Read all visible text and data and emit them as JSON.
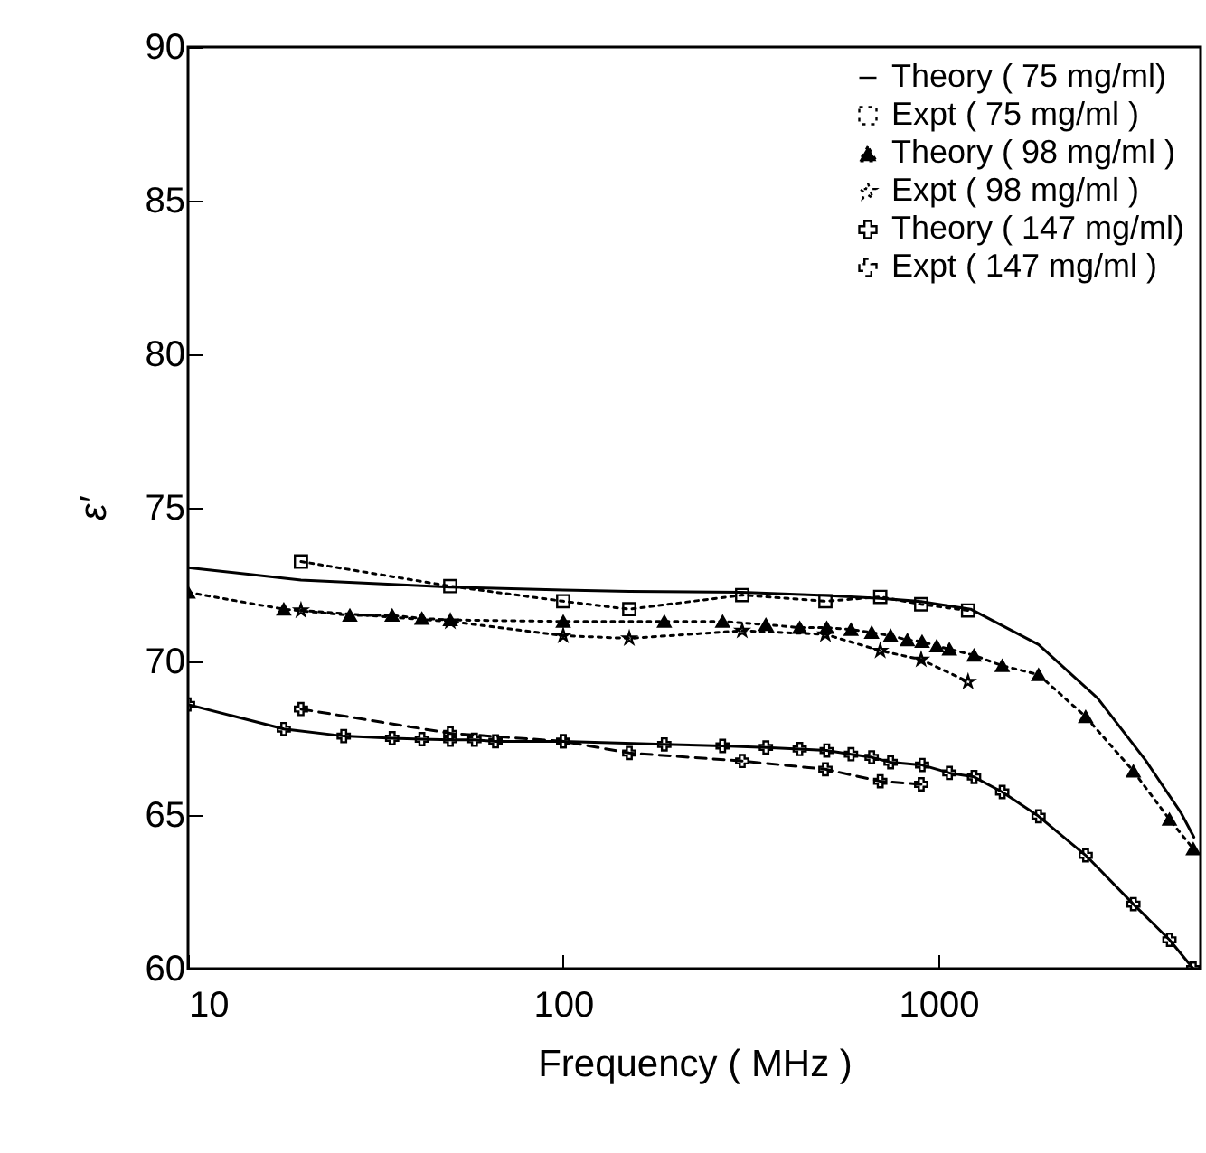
{
  "chart_data": {
    "type": "line",
    "xlabel": "Frequency ( MHz )",
    "ylabel": "ε′",
    "log": "x",
    "xlim": [
      10,
      5000
    ],
    "xticks": [
      10,
      100,
      1000
    ],
    "ylim": [
      60,
      90
    ],
    "yticks": [
      60,
      65,
      70,
      75,
      80,
      85,
      90
    ],
    "grid": false,
    "legend": "top right",
    "series": [
      {
        "name": "Theory ( 75 mg/ml)",
        "color": "#000000",
        "line_style": "solid",
        "marker": "none",
        "x": [
          10,
          20,
          50,
          100,
          150,
          300,
          500,
          700,
          900,
          1220,
          1850,
          2660,
          3560,
          4440,
          4800
        ],
        "values": [
          73.05,
          72.65,
          72.42,
          72.32,
          72.28,
          72.25,
          72.15,
          72.05,
          71.95,
          71.7,
          70.55,
          68.8,
          66.8,
          65.06,
          64.28
        ]
      },
      {
        "name": "Expt ( 75 mg/ml )",
        "color": "#000000",
        "line_style": "dotted",
        "marker": "square",
        "x": [
          20,
          50,
          100,
          150,
          300,
          500,
          700,
          900,
          1200
        ],
        "values": [
          73.25,
          72.45,
          71.96,
          71.7,
          72.16,
          71.96,
          72.1,
          71.86,
          71.66
        ]
      },
      {
        "name": "Theory ( 98 mg/ml )",
        "color": "#000000",
        "line_style": "dotted",
        "marker": "triangle",
        "x": [
          10,
          18,
          27,
          35,
          42,
          50,
          100,
          186,
          266,
          347,
          427,
          504,
          585,
          664,
          746,
          827,
          905,
          990,
          1070,
          1245,
          1480,
          1850,
          2470,
          3310,
          4130,
          4780
        ],
        "values": [
          72.25,
          71.7,
          71.5,
          71.5,
          71.4,
          71.35,
          71.3,
          71.3,
          71.3,
          71.2,
          71.1,
          71.1,
          71.04,
          70.94,
          70.84,
          70.7,
          70.65,
          70.5,
          70.4,
          70.2,
          69.86,
          69.57,
          68.2,
          66.43,
          64.86,
          63.9
        ]
      },
      {
        "name": "Expt ( 98 mg/ml )",
        "color": "#000000",
        "line_style": "dotted",
        "marker": "star",
        "x": [
          20,
          50,
          100,
          150,
          300,
          500,
          700,
          900,
          1200
        ],
        "values": [
          71.66,
          71.3,
          70.84,
          70.75,
          71.0,
          70.88,
          70.35,
          70.06,
          69.34
        ]
      },
      {
        "name": "Theory ( 147 mg/ml)",
        "color": "#000000",
        "line_style": "solid",
        "marker": "cross",
        "x": [
          10,
          18,
          26,
          35,
          42,
          50,
          58,
          66,
          100,
          186,
          266,
          347,
          427,
          504,
          585,
          664,
          746,
          905,
          1070,
          1245,
          1480,
          1850,
          2470,
          3310,
          4130,
          4780
        ],
        "values": [
          68.6,
          67.8,
          67.57,
          67.5,
          67.47,
          67.45,
          67.45,
          67.4,
          67.4,
          67.3,
          67.25,
          67.2,
          67.15,
          67.1,
          66.98,
          66.88,
          66.72,
          66.63,
          66.37,
          66.24,
          65.75,
          64.96,
          63.69,
          62.1,
          60.94,
          60.0
        ]
      },
      {
        "name": "Expt ( 147 mg/ml )",
        "color": "#000000",
        "line_style": "dashed",
        "marker": "cross",
        "x": [
          20,
          50,
          100,
          150,
          300,
          500,
          700,
          900
        ],
        "values": [
          68.45,
          67.66,
          67.4,
          67.02,
          66.76,
          66.49,
          66.1,
          66.0
        ]
      }
    ]
  }
}
